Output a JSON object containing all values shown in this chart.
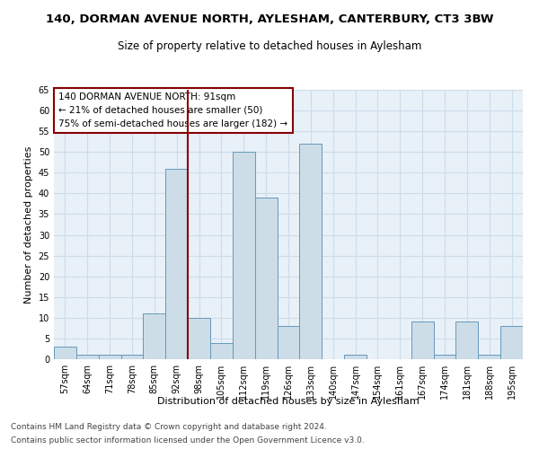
{
  "title": "140, DORMAN AVENUE NORTH, AYLESHAM, CANTERBURY, CT3 3BW",
  "subtitle": "Size of property relative to detached houses in Aylesham",
  "xlabel": "Distribution of detached houses by size in Aylesham",
  "ylabel": "Number of detached properties",
  "categories": [
    "57sqm",
    "64sqm",
    "71sqm",
    "78sqm",
    "85sqm",
    "92sqm",
    "98sqm",
    "105sqm",
    "112sqm",
    "119sqm",
    "126sqm",
    "133sqm",
    "140sqm",
    "147sqm",
    "154sqm",
    "161sqm",
    "167sqm",
    "174sqm",
    "181sqm",
    "188sqm",
    "195sqm"
  ],
  "values": [
    3,
    1,
    1,
    1,
    11,
    46,
    10,
    4,
    50,
    39,
    8,
    52,
    0,
    1,
    0,
    0,
    9,
    1,
    9,
    1,
    8
  ],
  "bar_color": "#ccdde8",
  "bar_edge_color": "#6699bb",
  "vline_color": "#880000",
  "annotation_text": "140 DORMAN AVENUE NORTH: 91sqm\n← 21% of detached houses are smaller (50)\n75% of semi-detached houses are larger (182) →",
  "ylim": [
    0,
    65
  ],
  "yticks": [
    0,
    5,
    10,
    15,
    20,
    25,
    30,
    35,
    40,
    45,
    50,
    55,
    60,
    65
  ],
  "grid_color": "#ccdde8",
  "bg_color": "#e8f0f8",
  "footer_line1": "Contains HM Land Registry data © Crown copyright and database right 2024.",
  "footer_line2": "Contains public sector information licensed under the Open Government Licence v3.0.",
  "title_fontsize": 9.5,
  "subtitle_fontsize": 8.5,
  "xlabel_fontsize": 8,
  "ylabel_fontsize": 8,
  "tick_fontsize": 7,
  "annotation_fontsize": 7.5,
  "footer_fontsize": 6.5,
  "vline_index": 5
}
